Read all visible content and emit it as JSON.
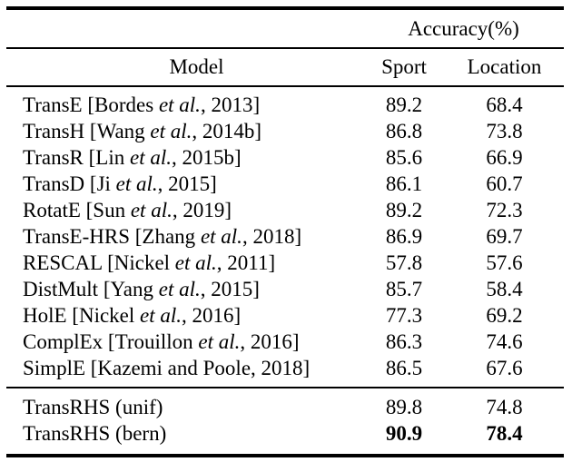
{
  "table": {
    "accuracy_header": "Accuracy(%)",
    "columns": {
      "model": "Model",
      "sport": "Sport",
      "location": "Location"
    },
    "rows": [
      {
        "pre": "TransE [Bordes ",
        "etal": "et al.",
        "post": ", 2013]",
        "sport": "89.2",
        "location": "68.4"
      },
      {
        "pre": "TransH [Wang ",
        "etal": "et al.",
        "post": ", 2014b]",
        "sport": "86.8",
        "location": "73.8"
      },
      {
        "pre": "TransR [Lin ",
        "etal": "et al.",
        "post": ", 2015b]",
        "sport": "85.6",
        "location": "66.9"
      },
      {
        "pre": "TransD [Ji ",
        "etal": "et al.",
        "post": ", 2015]",
        "sport": "86.1",
        "location": "60.7"
      },
      {
        "pre": "RotatE [Sun ",
        "etal": "et al.",
        "post": ", 2019]",
        "sport": "89.2",
        "location": "72.3"
      },
      {
        "pre": "TransE-HRS [Zhang ",
        "etal": "et al.",
        "post": ", 2018]",
        "sport": "86.9",
        "location": "69.7"
      },
      {
        "pre": "RESCAL [Nickel ",
        "etal": "et al.",
        "post": ", 2011]",
        "sport": "57.8",
        "location": "57.6"
      },
      {
        "pre": "DistMult [Yang ",
        "etal": "et al.",
        "post": ", 2015]",
        "sport": "85.7",
        "location": "58.4"
      },
      {
        "pre": "HolE [Nickel ",
        "etal": "et al.",
        "post": ", 2016]",
        "sport": "77.3",
        "location": "69.2"
      },
      {
        "pre": "ComplEx [Trouillon ",
        "etal": "et al.",
        "post": ", 2016]",
        "sport": "86.3",
        "location": "74.6"
      },
      {
        "pre": "SimplE [Kazemi and Poole, 2018]",
        "etal": "",
        "post": "",
        "sport": "86.5",
        "location": "67.6"
      }
    ],
    "footer_rows": [
      {
        "pre": "TransRHS (unif)",
        "etal": "",
        "post": "",
        "sport": "89.8",
        "location": "74.8",
        "bold_values": false
      },
      {
        "pre": "TransRHS (bern)",
        "etal": "",
        "post": "",
        "sport": "90.9",
        "location": "78.4",
        "bold_values": true
      }
    ],
    "colors": {
      "text": "#000000",
      "background": "#ffffff",
      "rule": "#000000"
    }
  }
}
